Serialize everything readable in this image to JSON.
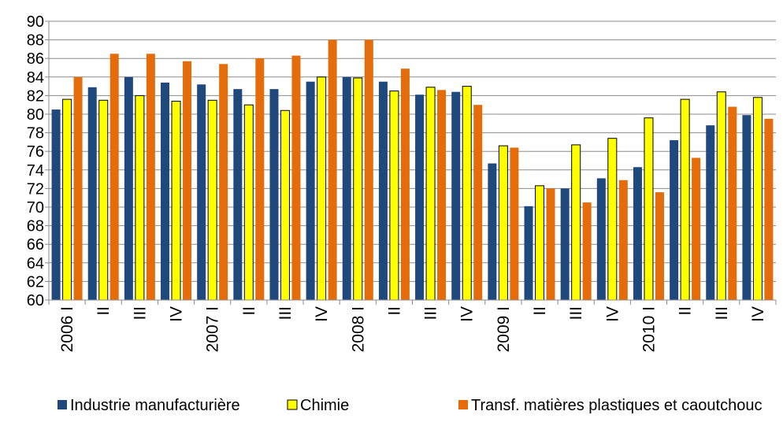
{
  "chart_data": {
    "type": "bar",
    "categories": [
      "2006 I",
      "II",
      "III",
      "IV",
      "2007 I",
      "II",
      "III",
      "IV",
      "2008 I",
      "II",
      "III",
      "IV",
      "2009 I",
      "II",
      "III",
      "IV",
      "2010 I",
      "II",
      "III",
      "IV"
    ],
    "series": [
      {
        "name": "Industrie manufacturière",
        "color": "#1F497D",
        "values": [
          80.5,
          82.9,
          84.0,
          83.4,
          83.2,
          82.7,
          82.7,
          83.5,
          84.0,
          83.5,
          82.1,
          82.4,
          74.7,
          70.1,
          72.0,
          73.1,
          74.3,
          77.2,
          78.8,
          79.9
        ]
      },
      {
        "name": "Chimie",
        "color": "#FFFF00",
        "values": [
          81.6,
          81.5,
          82.0,
          81.4,
          81.5,
          81.0,
          80.4,
          84.0,
          83.9,
          82.5,
          82.9,
          83.0,
          76.6,
          72.3,
          76.7,
          77.4,
          79.6,
          81.6,
          82.4,
          81.8
        ]
      },
      {
        "name": "Transf. matières plastiques et caoutchouc",
        "color": "#E46C0A",
        "values": [
          84.0,
          86.5,
          86.5,
          85.7,
          85.4,
          86.0,
          86.3,
          88.0,
          88.0,
          84.9,
          82.6,
          81.0,
          76.4,
          72.0,
          70.5,
          72.9,
          71.6,
          75.3,
          80.8,
          79.5
        ]
      }
    ],
    "y_ticks": [
      "60",
      "62",
      "64",
      "66",
      "68",
      "70",
      "72",
      "74",
      "76",
      "78",
      "80",
      "82",
      "84",
      "86",
      "88",
      "90"
    ],
    "ylim": [
      60,
      90
    ],
    "grid": true,
    "legend": "bottom",
    "title": "",
    "xlabel": "",
    "ylabel": ""
  }
}
